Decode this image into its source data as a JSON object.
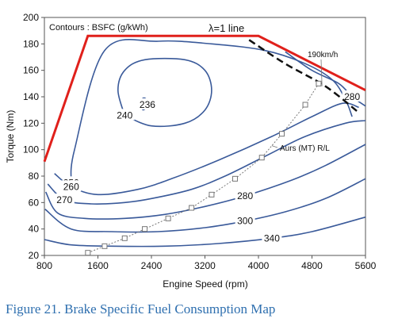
{
  "chart_data": {
    "type": "contour",
    "caption": "Figure 21. Brake Specific Fuel Consumption Map",
    "xlabel": "Engine Speed (rpm)",
    "ylabel": "Torque (Nm)",
    "xlim": [
      800,
      5600
    ],
    "ylim": [
      20,
      200
    ],
    "x_ticks": [
      800,
      1600,
      2400,
      3200,
      4000,
      4800,
      5600
    ],
    "y_ticks": [
      20,
      40,
      60,
      80,
      100,
      120,
      140,
      160,
      180,
      200
    ],
    "grid": false,
    "annotations": {
      "contours_title": "Contours : BSFC (g/kWh)",
      "lambda_line": "λ=1  line",
      "speed_190": "190km/h",
      "aures": "Aurs (MT) R/L"
    },
    "max_torque_line": {
      "color": "#E0201B",
      "x": [
        800,
        1450,
        3800,
        4000,
        5600
      ],
      "y": [
        91,
        186,
        186,
        186,
        145
      ]
    },
    "lambda_line": {
      "x": [
        3860,
        4400,
        5000,
        5500
      ],
      "y": [
        183,
        165,
        148,
        128
      ]
    },
    "road_load_line": {
      "name": "Aurs (MT) R/L",
      "x": [
        1450,
        1700,
        2000,
        2300,
        2650,
        3000,
        3300,
        3650,
        4050,
        4350,
        4700,
        4900
      ],
      "y": [
        22,
        27,
        33,
        40,
        48,
        56,
        66,
        78,
        94,
        112,
        134,
        150
      ]
    },
    "contours": [
      {
        "label": "236",
        "x": [
          2270,
          2310,
          2340,
          2320,
          2280,
          2250,
          2260,
          2270
        ],
        "y": [
          130,
          131,
          134,
          138,
          139,
          137,
          133,
          130
        ]
      },
      {
        "label": "240",
        "x": [
          2000,
          2400,
          2900,
          3200,
          3300,
          3200,
          2900,
          2300,
          2000,
          1900,
          2000
        ],
        "y": [
          126,
          118,
          120,
          130,
          145,
          160,
          168,
          168,
          160,
          145,
          126
        ]
      },
      {
        "label": "250",
        "x": [
          1200,
          1250,
          1700,
          2500,
          3300,
          4100,
          4700,
          5100,
          5300,
          5400
        ],
        "y": [
          75,
          100,
          175,
          182,
          180,
          175,
          165,
          153,
          138,
          125
        ]
      },
      {
        "label": "260",
        "x": [
          950,
          1200,
          1600,
          2200,
          2700,
          3400,
          4200,
          4800,
          5250,
          5500
        ],
        "y": [
          82,
          72,
          66,
          70,
          78,
          92,
          110,
          125,
          135,
          132
        ]
      },
      {
        "label": "270",
        "x": [
          850,
          1100,
          1500,
          2000,
          2400,
          3000,
          3500,
          4100,
          4700,
          5300,
          5600
        ],
        "y": [
          74,
          62,
          59,
          60,
          63,
          70,
          80,
          95,
          110,
          120,
          122
        ]
      },
      {
        "label": "280",
        "x": [
          820,
          1000,
          1400,
          2000,
          2600,
          3200,
          3800,
          4500,
          5000,
          5600
        ],
        "y": [
          68,
          52,
          48,
          48,
          51,
          57,
          65,
          77,
          88,
          104
        ]
      },
      {
        "label": "300",
        "x": [
          810,
          1200,
          1800,
          2500,
          3200,
          3800,
          4400,
          5000,
          5600
        ],
        "y": [
          55,
          40,
          38,
          38,
          41,
          46,
          53,
          63,
          78
        ]
      },
      {
        "label": "340",
        "x": [
          800,
          1200,
          1800,
          2600,
          3400,
          4200,
          4800,
          5600
        ],
        "y": [
          32,
          28,
          27,
          27,
          29,
          33,
          38,
          49
        ]
      },
      {
        "label": "280",
        "x": [
          4400,
          4800,
          5200,
          5400,
          5600
        ],
        "y": [
          174,
          160,
          150,
          140,
          133
        ]
      }
    ]
  }
}
